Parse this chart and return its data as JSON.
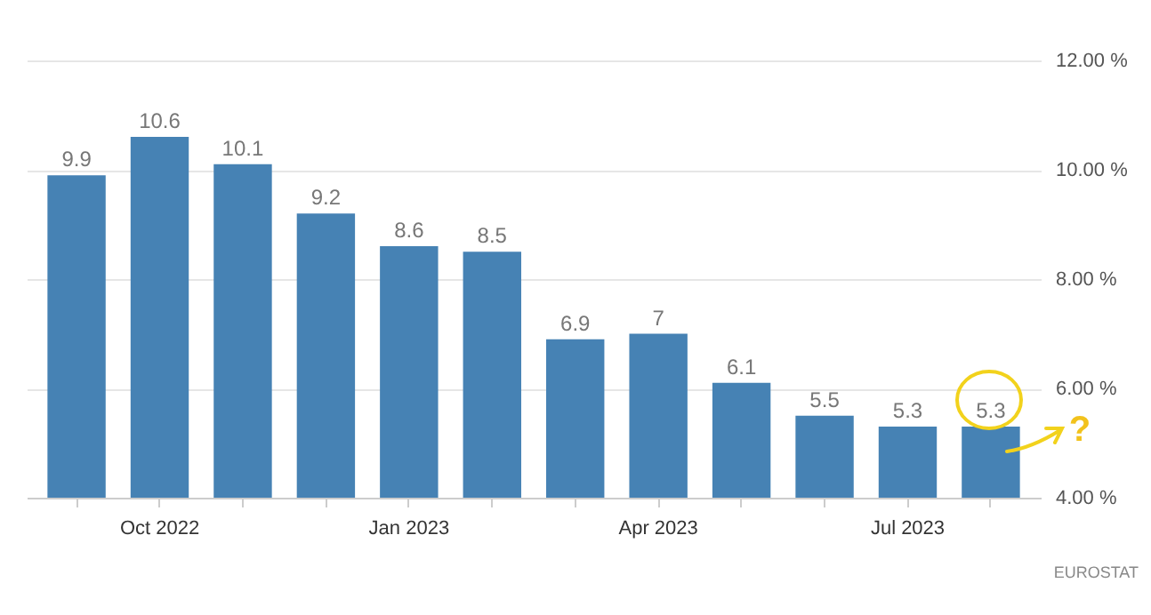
{
  "chart_data": {
    "type": "bar",
    "categories": [
      null,
      "Oct 2022",
      null,
      null,
      "Jan 2023",
      null,
      null,
      "Apr 2023",
      null,
      null,
      "Jul 2023",
      null
    ],
    "values": [
      9.9,
      10.6,
      10.1,
      9.2,
      8.6,
      8.5,
      6.9,
      7,
      6.1,
      5.5,
      5.3,
      5.3
    ],
    "color": "#4682b4",
    "ylim": [
      4,
      12
    ],
    "yticks": [
      {
        "value": 4,
        "label": "4.00 %"
      },
      {
        "value": 6,
        "label": "6.00 %"
      },
      {
        "value": 8,
        "label": "8.00 %"
      },
      {
        "value": 10,
        "label": "10.00 %"
      },
      {
        "value": 12,
        "label": "12.00 %"
      }
    ],
    "grid": "y",
    "data_labels": true,
    "annotations": [
      "EUROSTAT",
      "?"
    ]
  }
}
